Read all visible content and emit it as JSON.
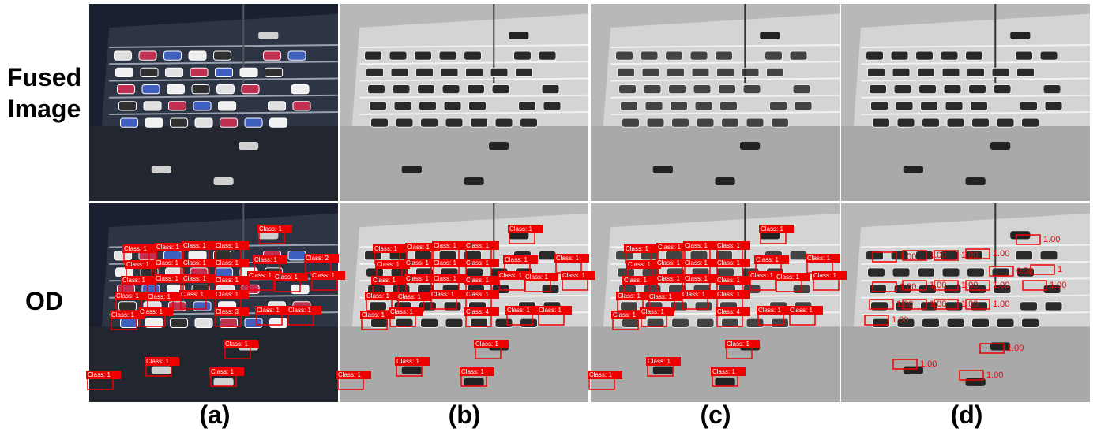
{
  "row_labels": [
    "Fused Image",
    "OD"
  ],
  "captions": [
    "(a)",
    "(b)",
    "(c)",
    "(d)"
  ],
  "detections": {
    "a": [
      "Class: 1",
      "Class: 1",
      "Class: 1",
      "Class: 1",
      "Class: 1",
      "Class: 1",
      "Class: 1",
      "Class: 1",
      "Class: 1",
      "Class: 1",
      "Class: 2",
      "Class: 1",
      "Class: 1",
      "Class: 1",
      "Class: 1",
      "Class: 1",
      "Class: 1",
      "Class: 1",
      "Class: 1",
      "Class: 1",
      "Class: 1",
      "Class: 1",
      "Class: 1",
      "Class: 1",
      "Class: 3",
      "Class: 1",
      "Class: 1",
      "Class: 1",
      "Class: 1",
      "Class: 1",
      "Class: 1"
    ],
    "b": [
      "Class: 1",
      "Class: 1",
      "Class: 1",
      "Class: 1",
      "Class: 1",
      "Class: 1",
      "Class: 1",
      "Class: 1",
      "Class: 1",
      "Class: 1",
      "Class: 1",
      "Class: 1",
      "Class: 1",
      "Class: 1",
      "Class: 1",
      "Class: 1",
      "Class: 1",
      "Class: 1",
      "Class: 1",
      "Class: 1",
      "Class: 1",
      "Class: 1",
      "Class: 1",
      "Class: 1",
      "Class: 4",
      "Class: 1",
      "Class: 1",
      "Class: 1",
      "Class: 1",
      "Class: 1",
      "Class: 1"
    ],
    "c": [
      "Class: 1",
      "Class: 1",
      "Class: 1",
      "Class: 1",
      "Class: 1",
      "Class: 1",
      "Class: 1",
      "Class: 1",
      "Class: 1",
      "Class: 1",
      "Class: 1",
      "Class: 1",
      "Class: 1",
      "Class: 1",
      "Class: 1",
      "Class: 1",
      "Class: 1",
      "Class: 1",
      "Class: 1",
      "Class: 1",
      "Class: 1",
      "Class: 1",
      "Class: 1",
      "Class: 1",
      "Class: 4",
      "Class: 1",
      "Class: 1",
      "Class: 1",
      "Class: 1",
      "Class: 1",
      "Class: 1"
    ],
    "d": [
      "1.00",
      "1.00",
      "1.00",
      "1.00",
      "1.00",
      "0.58",
      "1",
      "1.00",
      "1.00",
      "1.00",
      "1.00",
      "1.00",
      "1.00",
      "1.00",
      "1.00",
      "1.00",
      "1.00",
      "1.00",
      "1.00",
      "1.00"
    ]
  }
}
